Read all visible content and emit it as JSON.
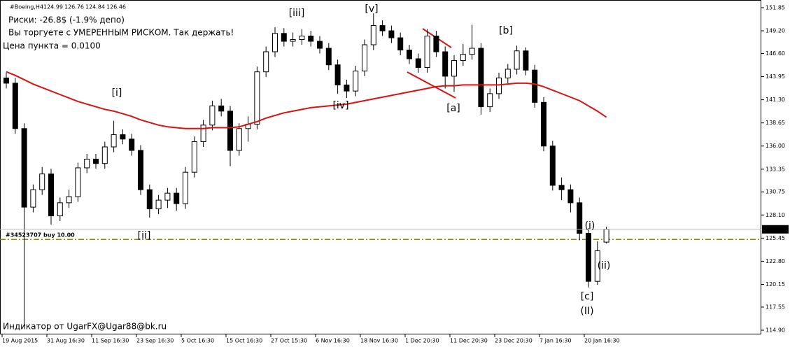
{
  "chart_data": {
    "type": "candlestick",
    "symbol": "#Boeing,H4",
    "categories": [
      "19 Aug 2015",
      null,
      null,
      null,
      null,
      "31 Aug 16:30",
      null,
      null,
      null,
      null,
      "11 Sep 16:30",
      null,
      null,
      null,
      null,
      "23 Sep 16:30",
      null,
      null,
      null,
      null,
      "5 Oct 16:30",
      null,
      null,
      null,
      null,
      "15 Oct 16:30",
      null,
      null,
      null,
      null,
      "27 Oct 15:30",
      null,
      null,
      null,
      null,
      "6 Nov 16:30",
      null,
      null,
      null,
      null,
      "18 Nov 16:30",
      null,
      null,
      null,
      null,
      "1 Dec 20:30",
      null,
      null,
      null,
      null,
      "11 Dec 20:30",
      null,
      null,
      null,
      null,
      "23 Dec 20:30",
      null,
      null,
      null,
      null,
      "7 Jan 16:30",
      null,
      null,
      null,
      null,
      "20 Jan 16:30",
      null,
      null
    ],
    "open": [
      143.8,
      143.2,
      138.0,
      129.0,
      131.0,
      132.8,
      128.0,
      129.5,
      130.2,
      133.5,
      134.5,
      134.0,
      135.9,
      137.3,
      136.8,
      135.5,
      131.0,
      128.8,
      129.8,
      130.6,
      129.4,
      133.0,
      136.5,
      138.4,
      140.6,
      140.0,
      135.5,
      138.0,
      138.5,
      144.5,
      146.8,
      148.9,
      148.0,
      148.2,
      148.6,
      148.0,
      147.2,
      145.3,
      143.0,
      142.3,
      144.6,
      147.6,
      149.8,
      149.2,
      148.4,
      147.0,
      146.0,
      145.0,
      148.6,
      146.8,
      144.0,
      145.8,
      146.5,
      147.2,
      140.5,
      142.0,
      143.8,
      144.8,
      146.9,
      144.7,
      141.0,
      136.0,
      131.5,
      131.0,
      129.5,
      126.0,
      120.5,
      124.99
    ],
    "high": [
      144.4,
      143.8,
      138.6,
      131.6,
      133.6,
      133.4,
      130.1,
      131.0,
      134.1,
      135.1,
      135.1,
      136.5,
      138.9,
      137.9,
      137.4,
      136.1,
      131.6,
      130.4,
      131.2,
      131.2,
      133.6,
      137.1,
      139.0,
      141.2,
      141.4,
      140.6,
      138.6,
      139.4,
      145.1,
      147.4,
      149.6,
      149.5,
      149.0,
      149.4,
      149.2,
      148.6,
      147.8,
      145.9,
      143.6,
      145.2,
      148.2,
      151.2,
      150.4,
      149.8,
      149.0,
      147.6,
      146.6,
      149.4,
      149.2,
      147.4,
      146.4,
      147.7,
      149.9,
      147.8,
      142.6,
      144.4,
      145.4,
      147.5,
      147.3,
      145.3,
      141.6,
      136.6,
      132.4,
      131.6,
      130.1,
      126.6,
      125.1,
      126.76
    ],
    "low": [
      142.6,
      137.4,
      115.4,
      128.4,
      130.4,
      127.0,
      127.4,
      128.9,
      129.6,
      132.9,
      133.4,
      133.4,
      135.3,
      136.2,
      134.9,
      130.4,
      127.8,
      128.2,
      128.9,
      128.6,
      128.8,
      132.4,
      135.9,
      137.8,
      139.4,
      133.7,
      134.9,
      136.5,
      137.9,
      143.9,
      146.2,
      147.4,
      147.4,
      147.6,
      147.4,
      146.6,
      144.7,
      142.0,
      141.5,
      141.7,
      144.0,
      147.0,
      148.6,
      147.8,
      146.4,
      145.4,
      144.4,
      144.4,
      146.2,
      142.6,
      142.2,
      145.2,
      145.9,
      139.6,
      139.9,
      141.4,
      143.2,
      144.2,
      144.1,
      140.4,
      135.4,
      130.9,
      129.8,
      128.4,
      125.2,
      119.8,
      120.1,
      124.84
    ],
    "close": [
      143.2,
      138.0,
      129.0,
      131.0,
      132.8,
      128.0,
      129.5,
      130.2,
      133.5,
      134.5,
      134.0,
      135.9,
      137.3,
      136.8,
      135.5,
      131.0,
      128.8,
      129.8,
      130.6,
      129.4,
      133.0,
      136.5,
      138.4,
      140.6,
      140.0,
      135.5,
      138.0,
      138.5,
      144.5,
      146.8,
      148.9,
      148.0,
      148.2,
      148.6,
      148.0,
      147.2,
      145.3,
      143.0,
      142.3,
      144.6,
      147.6,
      149.8,
      149.2,
      148.4,
      147.0,
      146.0,
      145.0,
      148.6,
      146.8,
      144.0,
      145.8,
      146.5,
      147.2,
      140.5,
      142.0,
      143.8,
      144.8,
      146.9,
      144.7,
      141.0,
      136.0,
      131.5,
      131.0,
      129.5,
      126.0,
      120.5,
      124.0,
      126.46
    ],
    "ma": {
      "color": "#dd1111",
      "values": [
        144.5,
        144.1,
        143.6,
        143.1,
        142.7,
        142.3,
        141.9,
        141.5,
        141.1,
        140.8,
        140.5,
        140.2,
        140.0,
        139.7,
        139.4,
        139.0,
        138.7,
        138.4,
        138.2,
        138.1,
        138.0,
        138.0,
        138.0,
        138.1,
        138.1,
        138.1,
        138.2,
        138.5,
        138.8,
        139.2,
        139.5,
        139.8,
        140.0,
        140.2,
        140.4,
        140.5,
        140.6,
        140.7,
        140.8,
        141.0,
        141.2,
        141.4,
        141.6,
        141.8,
        142.0,
        142.2,
        142.4,
        142.6,
        142.8,
        142.9,
        142.9,
        143.0,
        143.0,
        143.0,
        143.0,
        143.0,
        143.1,
        143.2,
        143.2,
        143.1,
        142.8,
        142.4,
        142.0,
        141.6,
        141.2,
        140.6,
        140.0,
        139.3
      ]
    },
    "ylim": [
      114.42,
      152.73
    ],
    "yticks": [
      151.85,
      {
        "value": 149.2,
        "label": "149.20"
      },
      {
        "value": 146.6,
        "label": "146.60"
      },
      143.95,
      {
        "value": 141.3,
        "label": "141.30"
      },
      138.65,
      {
        "value": 136.0,
        "label": "136.00"
      },
      133.35,
      130.75,
      {
        "value": 128.1,
        "label": "128.10"
      },
      125.45,
      {
        "value": 122.8,
        "label": "122.80"
      },
      120.15,
      117.55,
      {
        "value": 114.9,
        "label": "114.90"
      }
    ],
    "order": {
      "label": "#34523707 buy 10.00",
      "price": 125.3,
      "color": "#8a8a00"
    },
    "annotations": [
      "[i]",
      "[ii]",
      "[iii]",
      "[iv]",
      "[v]",
      "[a]",
      "[b]",
      "[c]",
      "(II)",
      "(i)",
      "(ii)"
    ],
    "info": {
      "color": "#00b000",
      "lines": [
        "Риски: -26.8$ (-1.9% депо)",
        "Вы торгуете с УМЕРЕННЫМ РИСКОМ. Так держать!"
      ]
    },
    "point_value": "Цена пункта = 0.0100",
    "watermark": {
      "text": "Индикатор от UgarFX@Ugar88@bk.ru",
      "color": "#e0d000"
    }
  }
}
